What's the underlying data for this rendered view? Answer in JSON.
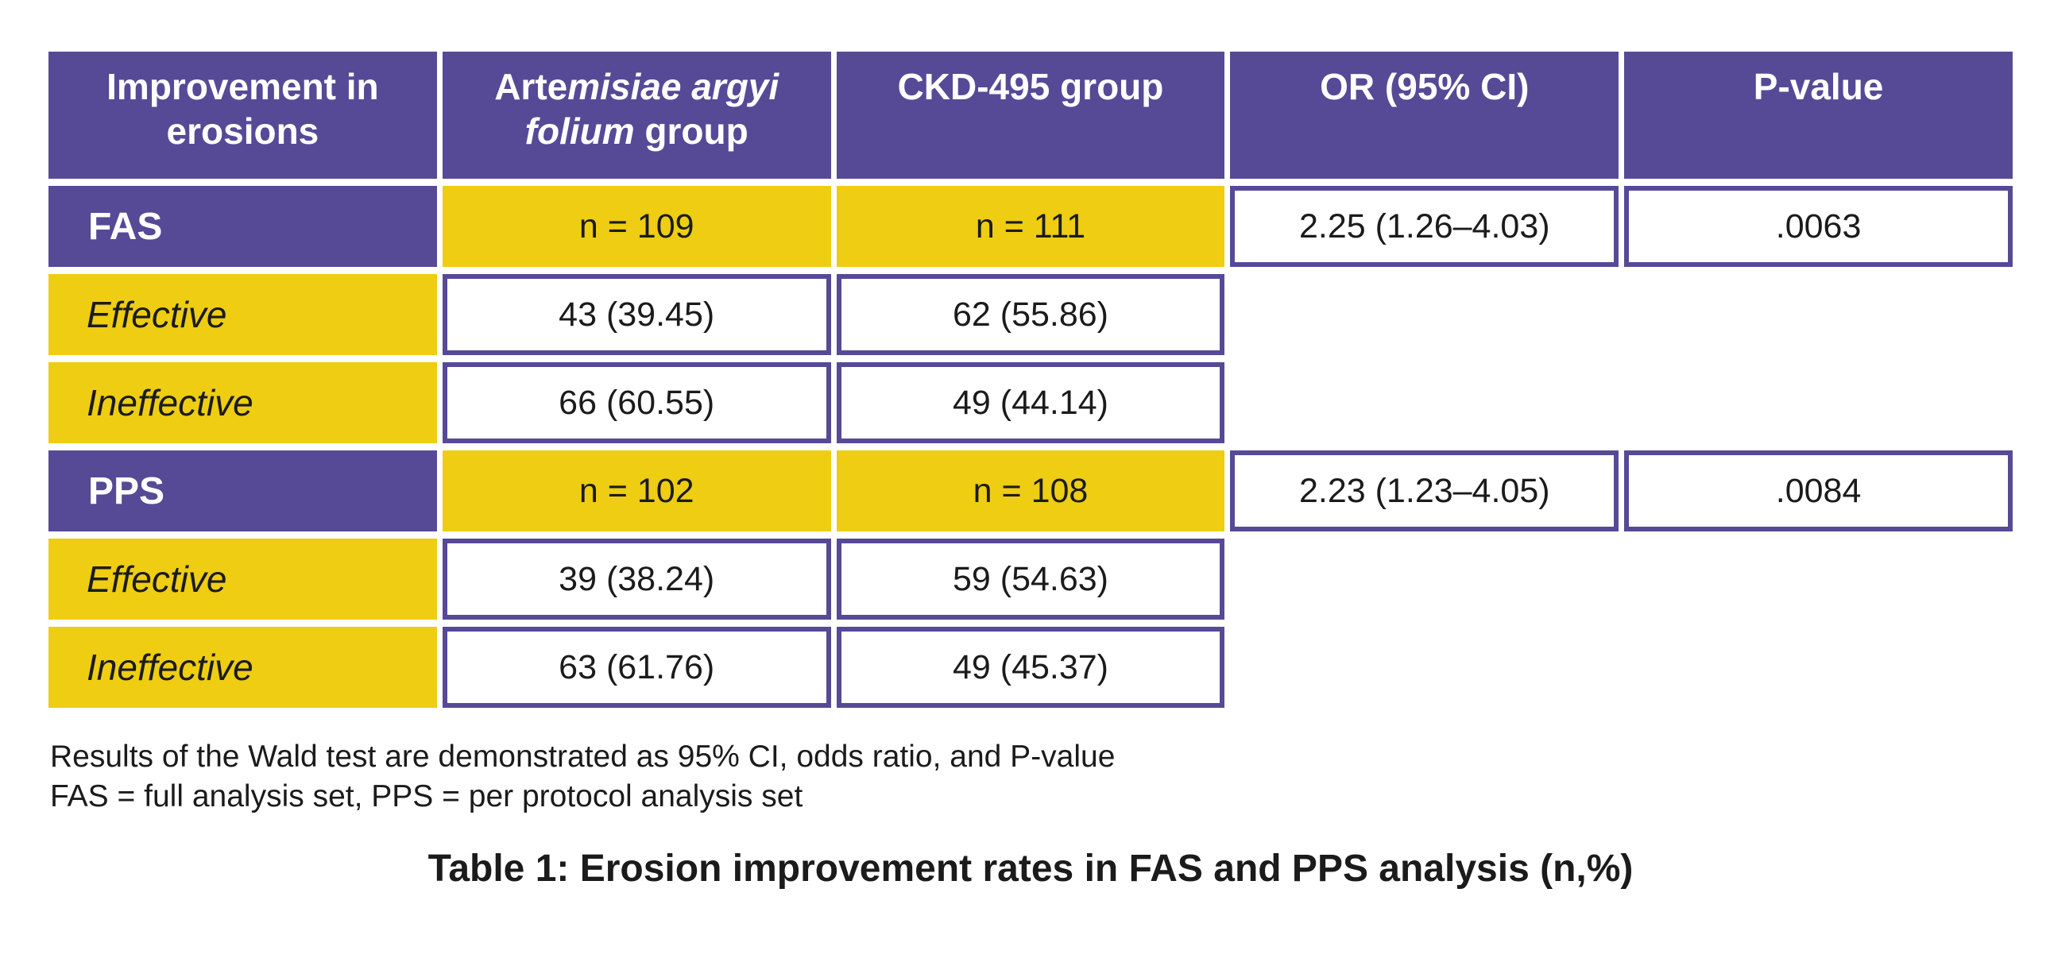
{
  "table": {
    "headers": {
      "col1": {
        "line1": "Improvement in",
        "line2": "erosions"
      },
      "col2": {
        "regular_prefix": "Arte",
        "italic_mid": "misiae argyi",
        "italic_line2": "folium",
        "regular_suffix": " group"
      },
      "col3": "CKD-495 group",
      "col4": "OR (95% CI)",
      "col5": "P-value"
    },
    "blocks": [
      {
        "set_label": "FAS",
        "n_col2": "n = 109",
        "n_col3": "n = 111",
        "rows": [
          {
            "label": "Effective",
            "col2": "43 (39.45)",
            "col3": "62 (55.86)"
          },
          {
            "label": "Ineffective",
            "col2": "66 (60.55)",
            "col3": "49 (44.14)"
          }
        ],
        "or_ci": "2.25 (1.26–4.03)",
        "p_value": ".0063"
      },
      {
        "set_label": "PPS",
        "n_col2": "n = 102",
        "n_col3": "n = 108",
        "rows": [
          {
            "label": "Effective",
            "col2": "39 (38.24)",
            "col3": "59 (54.63)"
          },
          {
            "label": "Ineffective",
            "col2": "63 (61.76)",
            "col3": "49 (45.37)"
          }
        ],
        "or_ci": "2.23 (1.23–4.05)",
        "p_value": ".0084"
      }
    ],
    "footnotes": [
      "Results of the Wald test are demonstrated as 95% CI, odds ratio, and P-value",
      "FAS = full analysis set, PPS = per protocol analysis set"
    ],
    "caption": "Table 1: Erosion improvement rates in FAS and PPS analysis (n,%)"
  },
  "colors": {
    "purple": "#564a97",
    "yellow": "#eecd13",
    "ink": "#1b1b1b"
  }
}
